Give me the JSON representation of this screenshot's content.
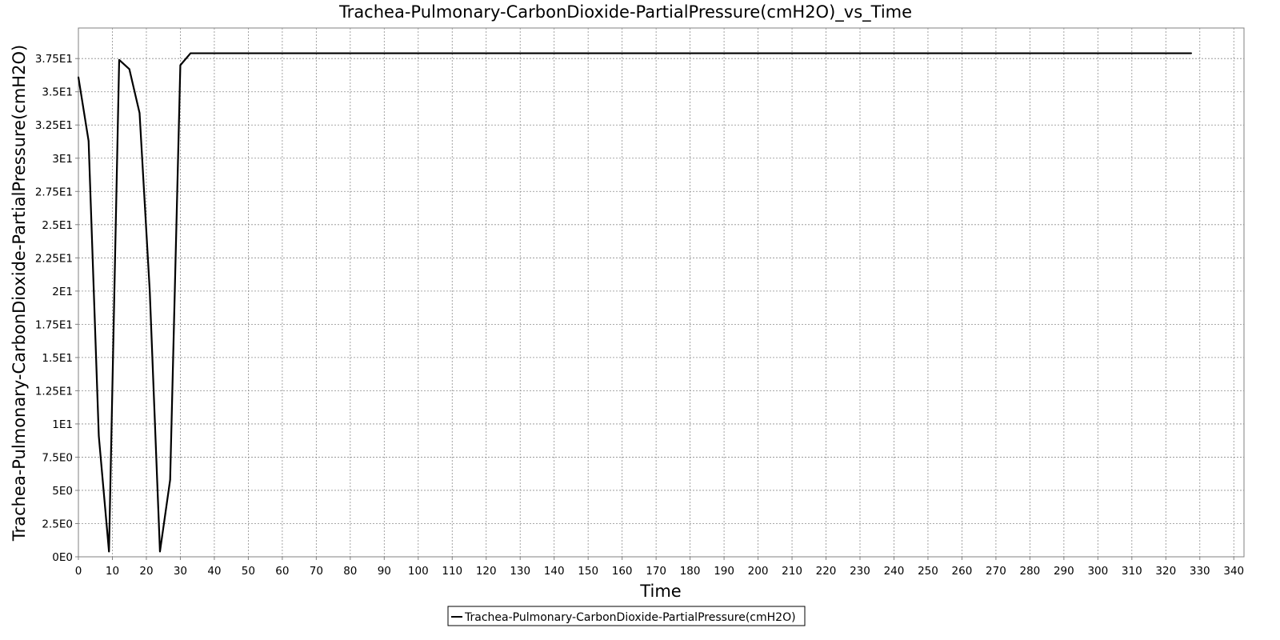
{
  "chart_data": {
    "type": "line",
    "title": "Trachea-Pulmonary-CarbonDioxide-PartialPressure(cmH2O)_vs_Time",
    "xlabel": "Time",
    "ylabel": "Trachea-Pulmonary-CarbonDioxide-PartialPressure(cmH2O)",
    "xlim": [
      0,
      343
    ],
    "ylim": [
      0,
      39.8
    ],
    "xticks": [
      0,
      10,
      20,
      30,
      40,
      50,
      60,
      70,
      80,
      90,
      100,
      110,
      120,
      130,
      140,
      150,
      160,
      170,
      180,
      190,
      200,
      210,
      220,
      230,
      240,
      250,
      260,
      270,
      280,
      290,
      300,
      310,
      320,
      330,
      340
    ],
    "xtick_labels": [
      "0",
      "10",
      "20",
      "30",
      "40",
      "50",
      "60",
      "70",
      "80",
      "90",
      "100",
      "110",
      "120",
      "130",
      "140",
      "150",
      "160",
      "170",
      "180",
      "190",
      "200",
      "210",
      "220",
      "230",
      "240",
      "250",
      "260",
      "270",
      "280",
      "290",
      "300",
      "310",
      "320",
      "330",
      "340"
    ],
    "yticks": [
      0,
      2.5,
      5,
      7.5,
      10,
      12.5,
      15,
      17.5,
      20,
      22.5,
      25,
      27.5,
      30,
      32.5,
      35,
      37.5
    ],
    "ytick_labels": [
      "0E0",
      "2.5E0",
      "5E0",
      "7.5E0",
      "1E1",
      "1.25E1",
      "1.5E1",
      "1.75E1",
      "2E1",
      "2.25E1",
      "2.5E1",
      "2.75E1",
      "3E1",
      "3.25E1",
      "3.5E1",
      "3.75E1"
    ],
    "grid": true,
    "legend_position": "bottom-center",
    "series": [
      {
        "name": "Trachea-Pulmonary-CarbonDioxide-PartialPressure(cmH2O)",
        "color": "#000000",
        "x": [
          0,
          3,
          6,
          9,
          12,
          15,
          18,
          21,
          24,
          27,
          30,
          33,
          40,
          60,
          100,
          150,
          200,
          250,
          300,
          327.5
        ],
        "y": [
          36.1,
          31.3,
          9.1,
          0.4,
          37.4,
          36.7,
          33.4,
          20.0,
          0.4,
          5.8,
          37.0,
          37.9,
          37.9,
          37.9,
          37.9,
          37.9,
          37.9,
          37.9,
          37.9,
          37.9
        ]
      }
    ]
  }
}
